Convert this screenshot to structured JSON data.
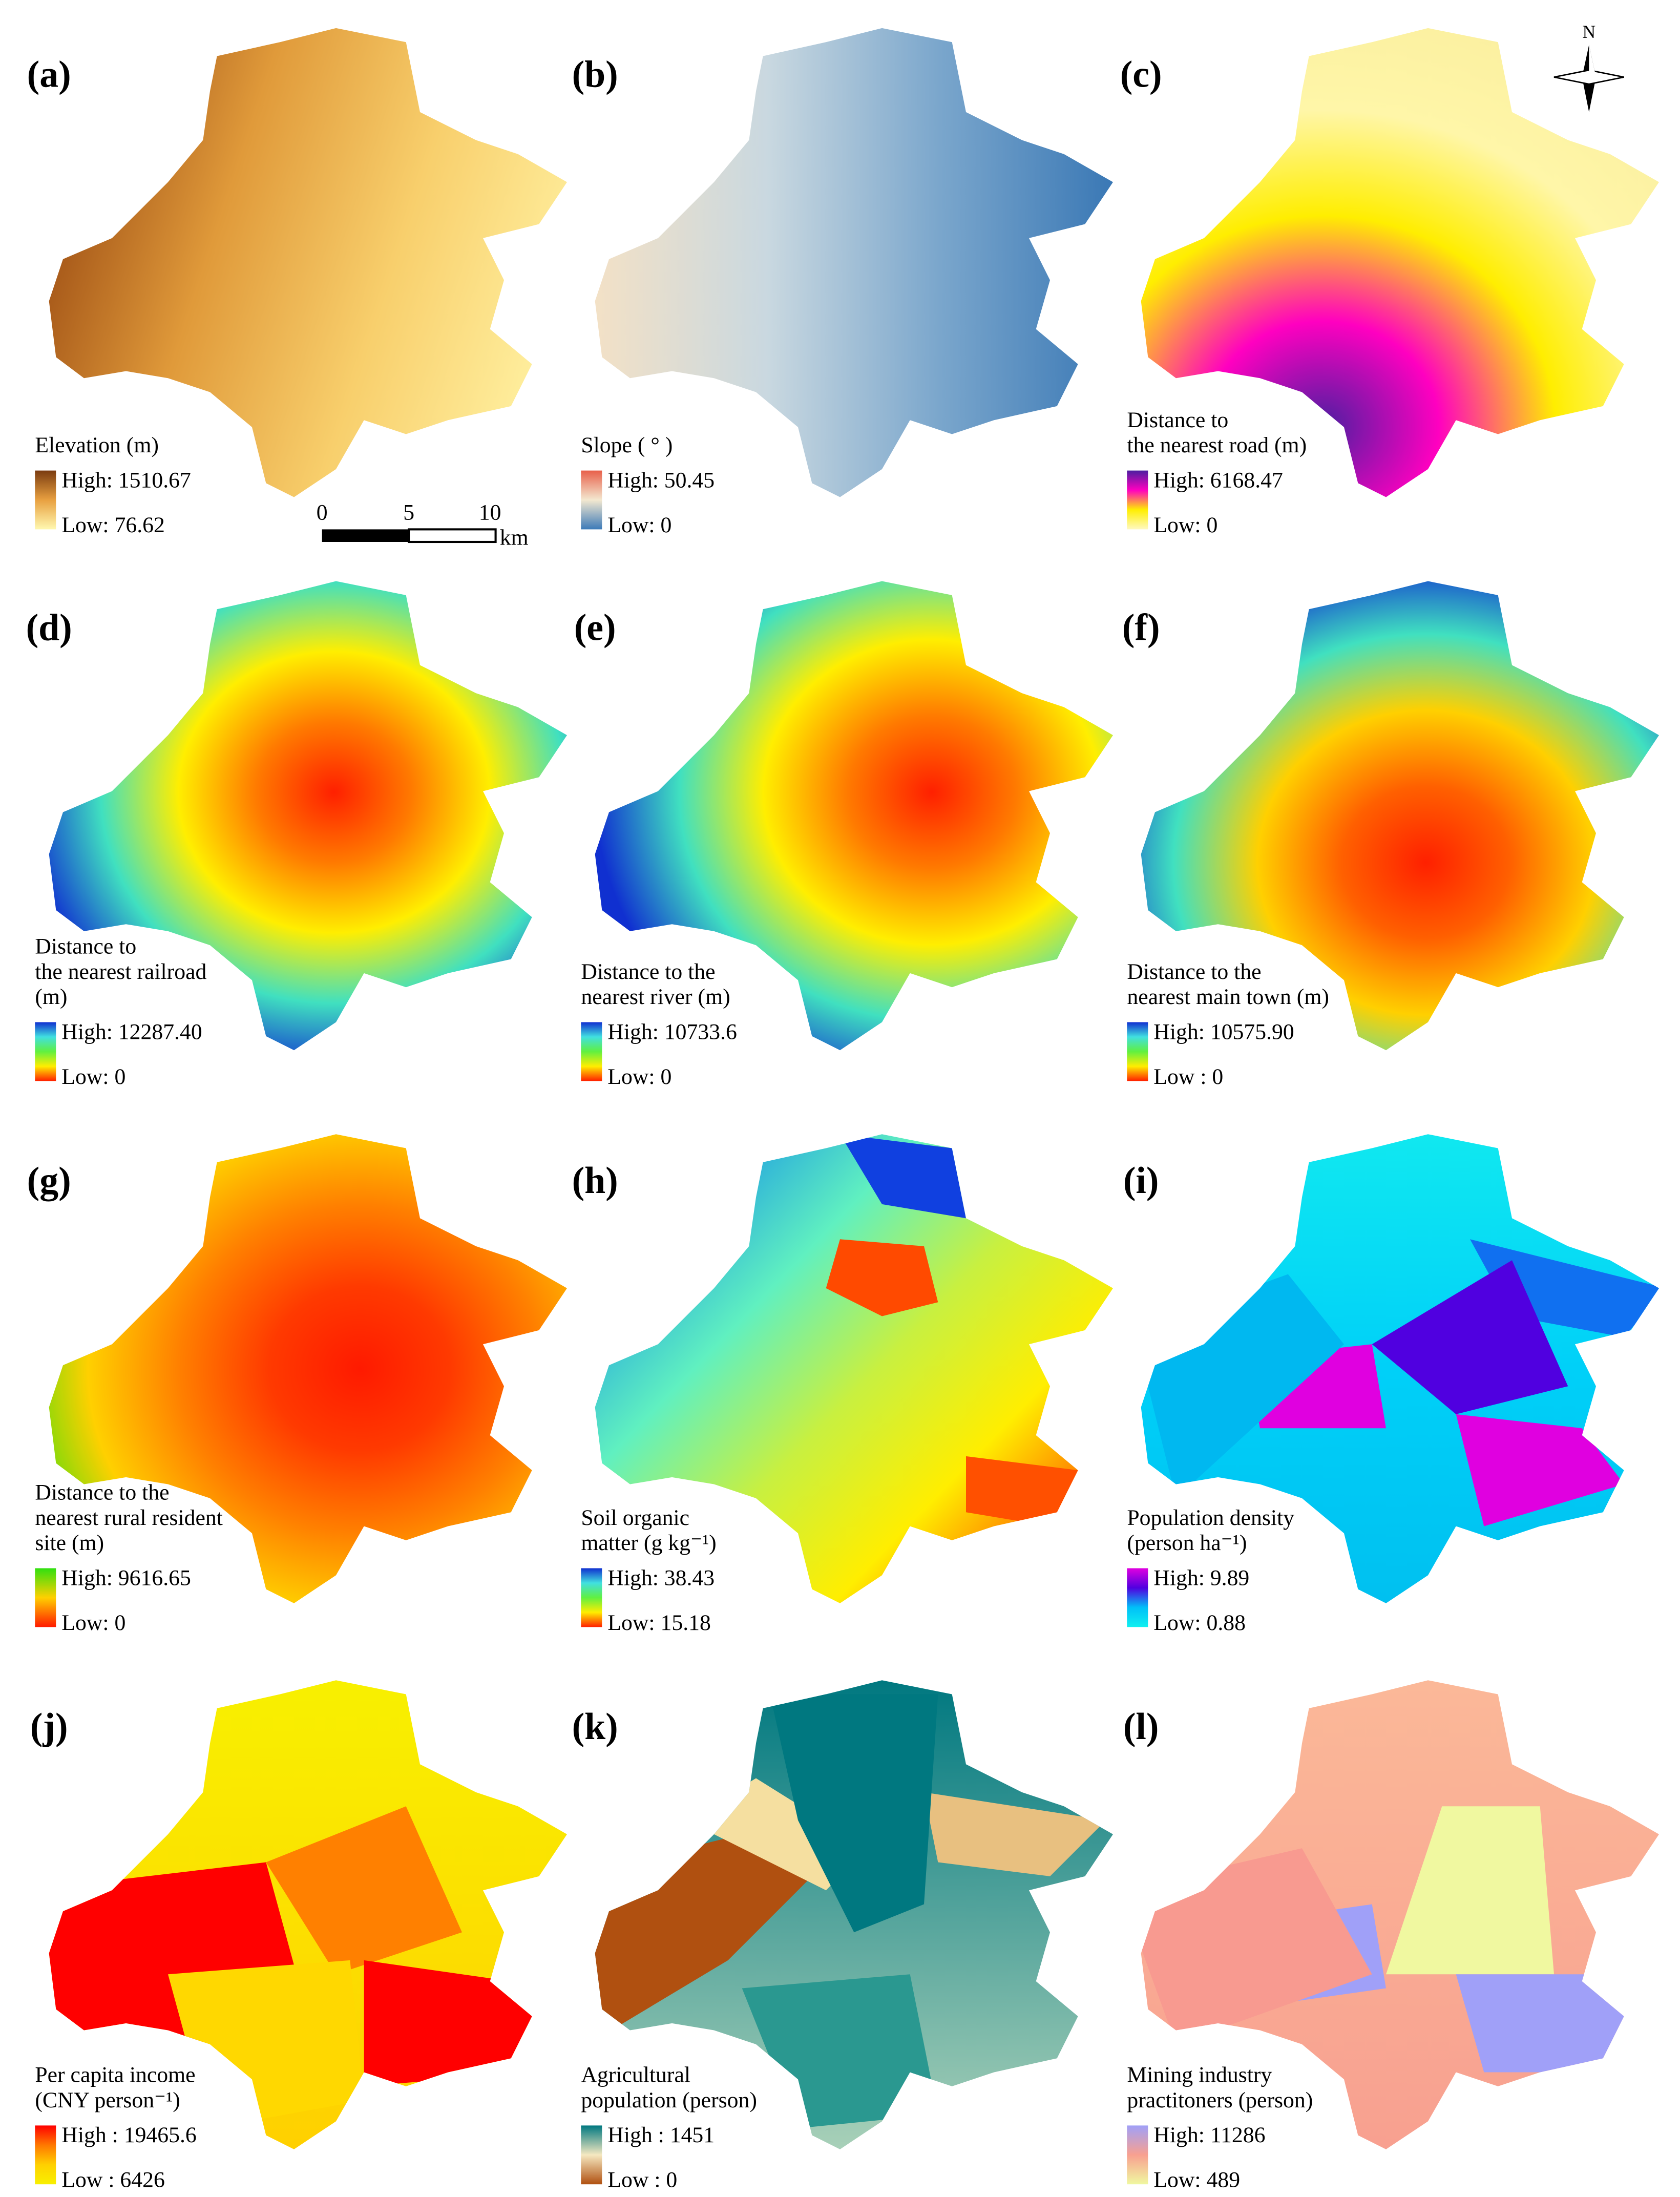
{
  "panels": [
    {
      "label": "(a)",
      "legend_title": [
        "Elevation (m)"
      ],
      "high": "High: 1510.67",
      "low": "Low: 76.62"
    },
    {
      "label": "(b)",
      "legend_title": [
        "Slope ( ° )"
      ],
      "high": "High: 50.45",
      "low": "Low: 0"
    },
    {
      "label": "(c)",
      "legend_title": [
        "Distance to",
        "the nearest road  (m)"
      ],
      "high": "High: 6168.47",
      "low": "Low: 0"
    },
    {
      "label": "(d)",
      "legend_title": [
        "Distance to",
        "the nearest railroad",
        "(m)"
      ],
      "high": "High: 12287.40",
      "low": "Low: 0"
    },
    {
      "label": "(e)",
      "legend_title": [
        "Distance to the",
        "nearest river (m)"
      ],
      "high": "High: 10733.6",
      "low": "Low: 0"
    },
    {
      "label": "(f)",
      "legend_title": [
        "Distance to the",
        "nearest main town (m)"
      ],
      "high": "High: 10575.90",
      "low": "Low : 0"
    },
    {
      "label": "(g)",
      "legend_title": [
        "Distance to the",
        "nearest rural resident",
        "site (m)"
      ],
      "high": "High: 9616.65",
      "low": "Low: 0"
    },
    {
      "label": "(h)",
      "legend_title": [
        "Soil organic",
        "matter (g kg⁻¹)"
      ],
      "high": "High: 38.43",
      "low": "Low: 15.18"
    },
    {
      "label": "(i)",
      "legend_title": [
        "Population density",
        "(person ha⁻¹)"
      ],
      "high": "High: 9.89",
      "low": "Low: 0.88"
    },
    {
      "label": "(j)",
      "legend_title": [
        "Per capita income",
        "(CNY person⁻¹)"
      ],
      "high": "High : 19465.6",
      "low": "Low : 6426"
    },
    {
      "label": "(k)",
      "legend_title": [
        "Agricultural",
        "population  (person)"
      ],
      "high": "High : 1451",
      "low": "Low : 0"
    },
    {
      "label": "(l)",
      "legend_title": [
        "Mining industry",
        "practitoners (person)"
      ],
      "high": "High: 11286",
      "low": "Low: 489"
    }
  ],
  "scale_bar": {
    "ticks": [
      "0",
      "5",
      "10"
    ],
    "unit": "km"
  },
  "north": "N"
}
